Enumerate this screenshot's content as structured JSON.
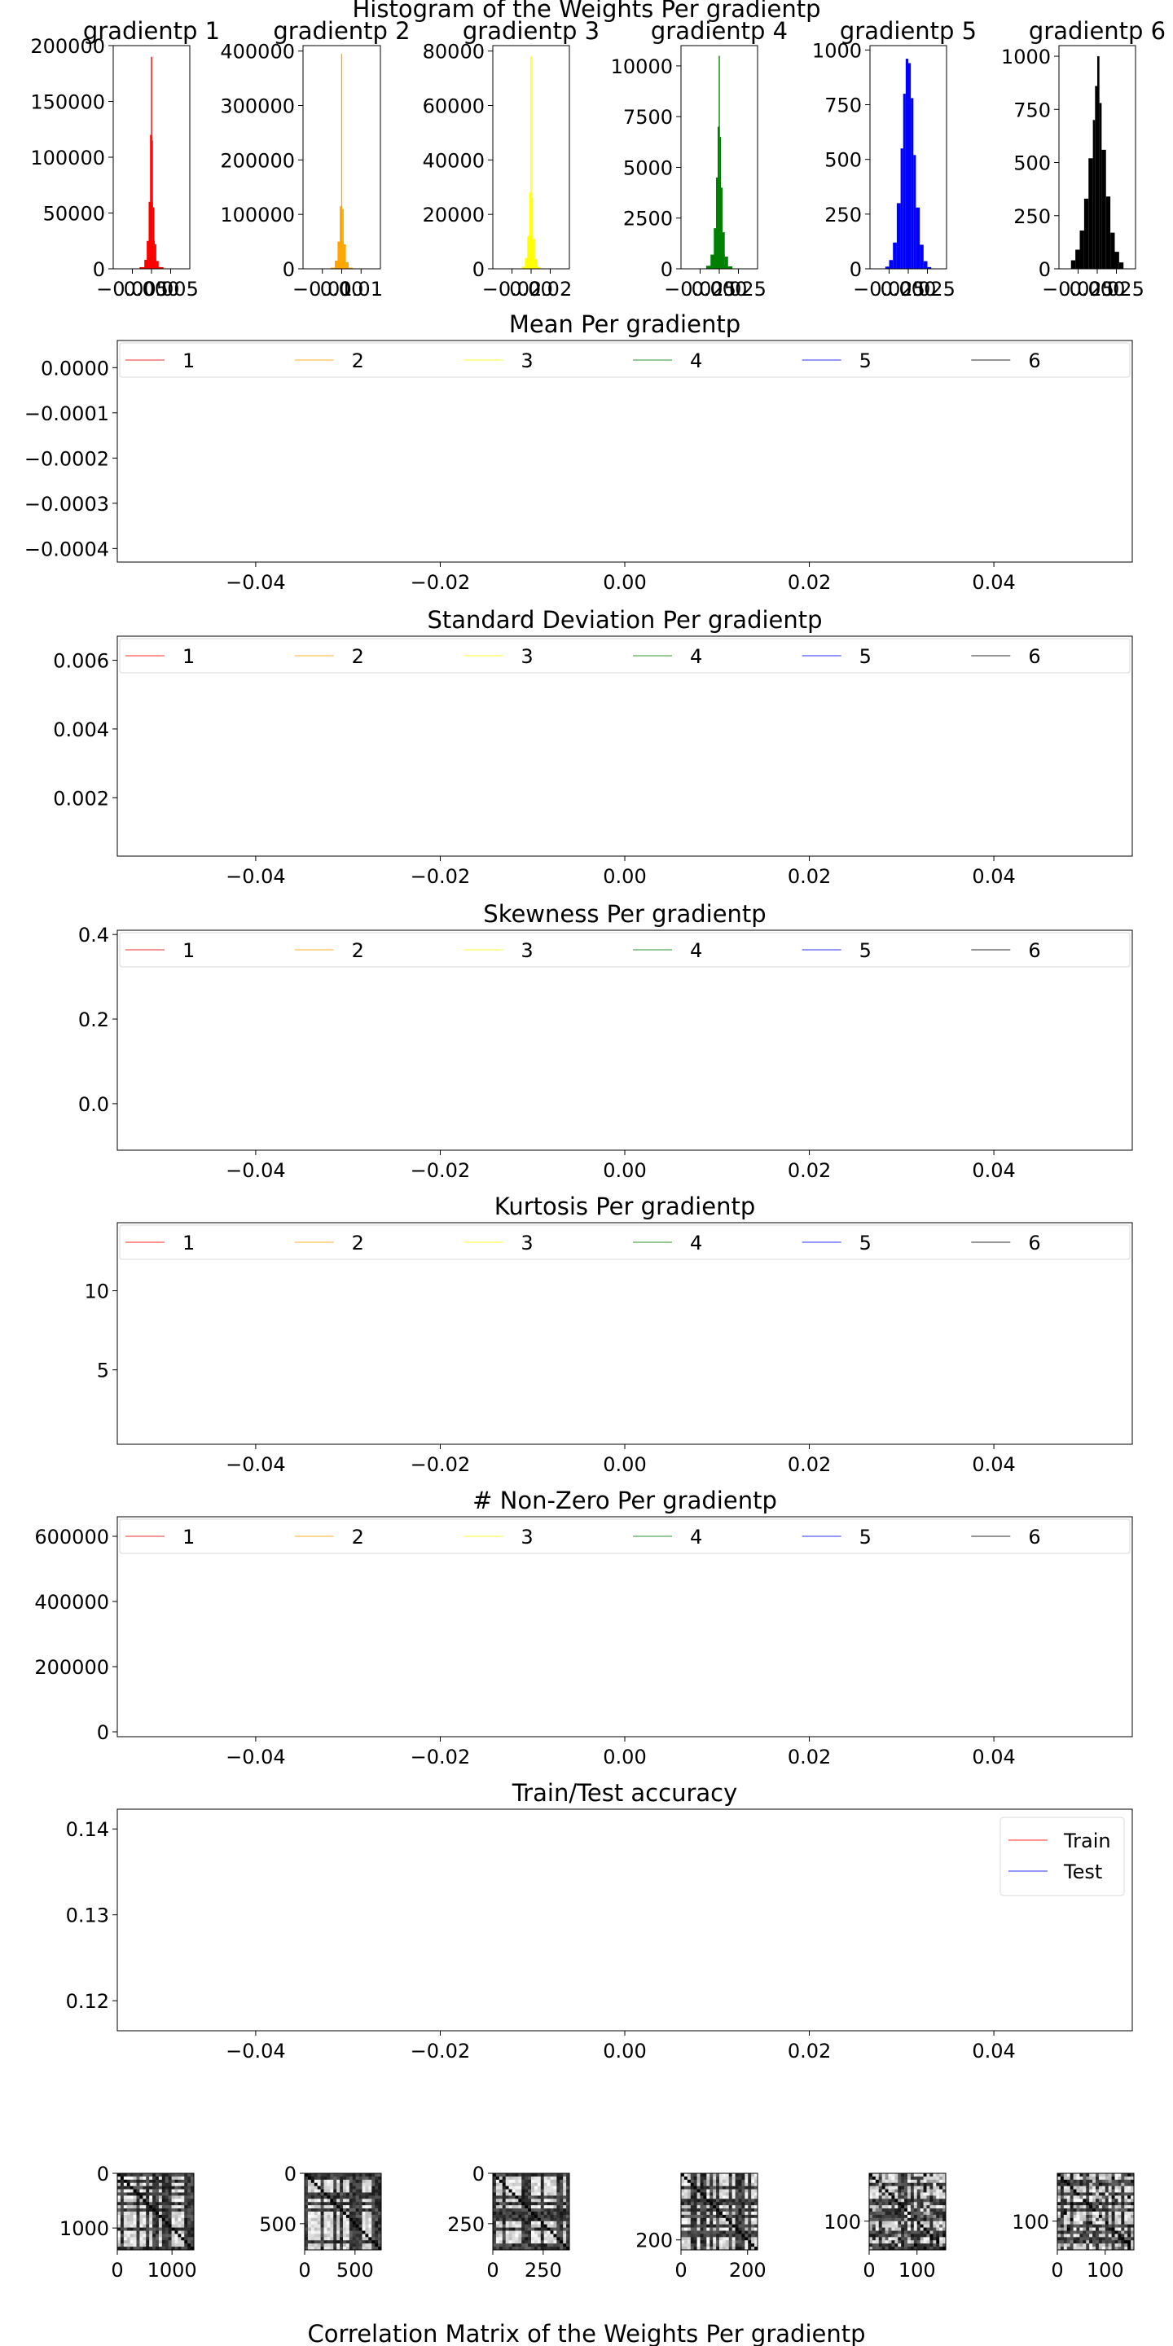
{
  "figure": {
    "histogram_title": "Histogram of the Weights Per gradientp",
    "correlation_title": "Correlation Matrix of the Weights Per gradientp"
  },
  "chart_data": [
    {
      "type": "bar",
      "group": "histograms",
      "title": "gradientp 1",
      "color": "#ff0000",
      "xticks": [
        "−0.005",
        "0.000",
        "0.005"
      ],
      "xlim": [
        -0.008,
        0.008
      ],
      "yticks": [
        0,
        50000,
        100000,
        150000,
        200000
      ],
      "ylim": [
        0,
        200000
      ],
      "bins": [
        [
          -0.0025,
          0.0015,
          1500
        ],
        [
          -0.0015,
          0.001,
          8000
        ],
        [
          -0.001,
          0.0007,
          25000
        ],
        [
          -0.0006,
          0.0003,
          60000
        ],
        [
          -0.0003,
          0.00012,
          120000
        ],
        [
          -0.00012,
          0.00012,
          190000
        ],
        [
          0.00012,
          0.0003,
          115000
        ],
        [
          0.0003,
          0.0006,
          55000
        ],
        [
          0.0006,
          0.001,
          22000
        ],
        [
          0.001,
          0.0015,
          7000
        ],
        [
          0.0015,
          0.0025,
          1500
        ]
      ]
    },
    {
      "type": "bar",
      "group": "histograms",
      "title": "gradientp 2",
      "color": "#ffa500",
      "xticks": [
        "−0.01",
        "0.00",
        "0.01"
      ],
      "xlim": [
        -0.014,
        0.014
      ],
      "yticks": [
        0,
        100000,
        200000,
        300000,
        400000
      ],
      "ylim": [
        0,
        410000
      ],
      "bins": [
        [
          -0.004,
          0.0025,
          2000
        ],
        [
          -0.0025,
          0.0015,
          15000
        ],
        [
          -0.0015,
          0.0007,
          50000
        ],
        [
          -0.0007,
          0.0002,
          115000
        ],
        [
          -0.0002,
          0.0002,
          395000
        ],
        [
          0.0002,
          0.0007,
          110000
        ],
        [
          0.0007,
          0.0015,
          45000
        ],
        [
          0.0015,
          0.0025,
          12000
        ],
        [
          0.0025,
          0.004,
          2000
        ]
      ]
    },
    {
      "type": "bar",
      "group": "histograms",
      "title": "gradientp 3",
      "color": "#ffff00",
      "xticks": [
        "−0.02",
        "0.00",
        "0.02"
      ],
      "xlim": [
        -0.025,
        0.025
      ],
      "yticks": [
        0,
        20000,
        40000,
        60000,
        80000
      ],
      "ylim": [
        0,
        82000
      ],
      "bins": [
        [
          -0.006,
          0.004,
          800
        ],
        [
          -0.004,
          0.0025,
          4000
        ],
        [
          -0.0025,
          0.0012,
          12000
        ],
        [
          -0.0012,
          0.0004,
          28000
        ],
        [
          -0.0004,
          0.0004,
          78000
        ],
        [
          0.0004,
          0.0012,
          26000
        ],
        [
          0.0012,
          0.0025,
          11000
        ],
        [
          0.0025,
          0.004,
          3500
        ],
        [
          0.004,
          0.006,
          700
        ]
      ]
    },
    {
      "type": "bar",
      "group": "histograms",
      "title": "gradientp 4",
      "color": "#008000",
      "xticks": [
        "−0.025",
        "0.000",
        "0.025"
      ],
      "xlim": [
        -0.035,
        0.035
      ],
      "yticks": [
        0,
        2500,
        5000,
        7500,
        10000
      ],
      "ylim": [
        0,
        11000
      ],
      "bins": [
        [
          -0.012,
          0.008,
          150
        ],
        [
          -0.008,
          0.005,
          700
        ],
        [
          -0.005,
          0.003,
          2000
        ],
        [
          -0.003,
          0.0015,
          4500
        ],
        [
          -0.0015,
          0.0005,
          7000
        ],
        [
          -0.0005,
          0.0005,
          10500
        ],
        [
          0.0005,
          0.0015,
          6500
        ],
        [
          0.0015,
          0.003,
          4000
        ],
        [
          0.003,
          0.005,
          1800
        ],
        [
          0.005,
          0.008,
          600
        ],
        [
          0.008,
          0.012,
          120
        ]
      ]
    },
    {
      "type": "bar",
      "group": "histograms",
      "title": "gradientp 5",
      "color": "#0000ff",
      "xticks": [
        "−0.025",
        "0.000",
        "0.025"
      ],
      "xlim": [
        -0.03,
        0.03
      ],
      "yticks": [
        0,
        250,
        500,
        750,
        1000
      ],
      "ylim": [
        0,
        1020
      ],
      "bins": [
        [
          -0.018,
          -0.015,
          10
        ],
        [
          -0.015,
          -0.012,
          40
        ],
        [
          -0.012,
          -0.009,
          120
        ],
        [
          -0.009,
          -0.006,
          300
        ],
        [
          -0.006,
          -0.004,
          550
        ],
        [
          -0.004,
          -0.002,
          800
        ],
        [
          -0.002,
          0,
          960
        ],
        [
          0,
          0.002,
          940
        ],
        [
          0.002,
          0.004,
          780
        ],
        [
          0.004,
          0.006,
          520
        ],
        [
          0.006,
          0.009,
          280
        ],
        [
          0.009,
          0.012,
          110
        ],
        [
          0.012,
          0.015,
          35
        ],
        [
          0.015,
          0.018,
          8
        ]
      ]
    },
    {
      "type": "bar",
      "group": "histograms",
      "title": "gradientp 6",
      "color": "#000000",
      "xticks": [
        "−0.025",
        "0.000",
        "0.025"
      ],
      "xlim": [
        -0.035,
        0.035
      ],
      "yticks": [
        0,
        250,
        500,
        750,
        1000
      ],
      "ylim": [
        0,
        1050
      ],
      "bins": [
        [
          -0.024,
          -0.02,
          40
        ],
        [
          -0.02,
          -0.016,
          90
        ],
        [
          -0.016,
          -0.012,
          180
        ],
        [
          -0.012,
          -0.008,
          330
        ],
        [
          -0.008,
          -0.004,
          520
        ],
        [
          -0.004,
          -0.002,
          700
        ],
        [
          -0.002,
          0,
          860
        ],
        [
          0,
          0.002,
          1000
        ],
        [
          0.002,
          0.004,
          780
        ],
        [
          0.004,
          0.008,
          560
        ],
        [
          0.008,
          0.012,
          340
        ],
        [
          0.012,
          0.016,
          170
        ],
        [
          0.016,
          0.02,
          80
        ],
        [
          0.02,
          0.024,
          30
        ]
      ]
    },
    {
      "type": "line",
      "group": "stat",
      "title": "Mean Per gradientp",
      "xlim": [
        -0.055,
        0.055
      ],
      "xticks": [
        -0.04,
        -0.02,
        0.0,
        0.02,
        0.04
      ],
      "xticklabels": [
        "−0.04",
        "−0.02",
        "0.00",
        "0.02",
        "0.04"
      ],
      "ylim": [
        -0.00043,
        6e-05
      ],
      "yticks": [
        0.0,
        -0.0001,
        -0.0002,
        -0.0003,
        -0.0004
      ],
      "yticklabels": [
        "0.0000",
        "−0.0001",
        "−0.0002",
        "−0.0003",
        "−0.0004"
      ],
      "legend": "top",
      "series": [
        {
          "name": "1",
          "color": "#ff0000",
          "values": []
        },
        {
          "name": "2",
          "color": "#ffa500",
          "values": []
        },
        {
          "name": "3",
          "color": "#ffff00",
          "values": []
        },
        {
          "name": "4",
          "color": "#008000",
          "values": []
        },
        {
          "name": "5",
          "color": "#0000ff",
          "values": []
        },
        {
          "name": "6",
          "color": "#000000",
          "values": []
        }
      ]
    },
    {
      "type": "line",
      "group": "stat",
      "title": "Standard Deviation Per gradientp",
      "xlim": [
        -0.055,
        0.055
      ],
      "xticks": [
        -0.04,
        -0.02,
        0.0,
        0.02,
        0.04
      ],
      "xticklabels": [
        "−0.04",
        "−0.02",
        "0.00",
        "0.02",
        "0.04"
      ],
      "ylim": [
        0.0003,
        0.0067
      ],
      "yticks": [
        0.006,
        0.004,
        0.002
      ],
      "yticklabels": [
        "0.006",
        "0.004",
        "0.002"
      ],
      "legend": "top",
      "series": [
        {
          "name": "1",
          "color": "#ff0000",
          "values": []
        },
        {
          "name": "2",
          "color": "#ffa500",
          "values": []
        },
        {
          "name": "3",
          "color": "#ffff00",
          "values": []
        },
        {
          "name": "4",
          "color": "#008000",
          "values": []
        },
        {
          "name": "5",
          "color": "#0000ff",
          "values": []
        },
        {
          "name": "6",
          "color": "#000000",
          "values": []
        }
      ]
    },
    {
      "type": "line",
      "group": "stat",
      "title": "Skewness Per gradientp",
      "xlim": [
        -0.055,
        0.055
      ],
      "xticks": [
        -0.04,
        -0.02,
        0.0,
        0.02,
        0.04
      ],
      "xticklabels": [
        "−0.04",
        "−0.02",
        "0.00",
        "0.02",
        "0.04"
      ],
      "ylim": [
        -0.11,
        0.41
      ],
      "yticks": [
        0.4,
        0.2,
        0.0
      ],
      "yticklabels": [
        "0.4",
        "0.2",
        "0.0"
      ],
      "legend": "top",
      "series": [
        {
          "name": "1",
          "color": "#ff0000",
          "values": []
        },
        {
          "name": "2",
          "color": "#ffa500",
          "values": []
        },
        {
          "name": "3",
          "color": "#ffff00",
          "values": []
        },
        {
          "name": "4",
          "color": "#008000",
          "values": []
        },
        {
          "name": "5",
          "color": "#0000ff",
          "values": []
        },
        {
          "name": "6",
          "color": "#000000",
          "values": []
        }
      ]
    },
    {
      "type": "line",
      "group": "stat",
      "title": "Kurtosis Per gradientp",
      "xlim": [
        -0.055,
        0.055
      ],
      "xticks": [
        -0.04,
        -0.02,
        0.0,
        0.02,
        0.04
      ],
      "xticklabels": [
        "−0.04",
        "−0.02",
        "0.00",
        "0.02",
        "0.04"
      ],
      "ylim": [
        0.3,
        14.3
      ],
      "yticks": [
        10,
        5
      ],
      "yticklabels": [
        "10",
        "5"
      ],
      "legend": "top",
      "series": [
        {
          "name": "1",
          "color": "#ff0000",
          "values": []
        },
        {
          "name": "2",
          "color": "#ffa500",
          "values": []
        },
        {
          "name": "3",
          "color": "#ffff00",
          "values": []
        },
        {
          "name": "4",
          "color": "#008000",
          "values": []
        },
        {
          "name": "5",
          "color": "#0000ff",
          "values": []
        },
        {
          "name": "6",
          "color": "#000000",
          "values": []
        }
      ]
    },
    {
      "type": "line",
      "group": "stat",
      "title": "# Non-Zero Per gradientp",
      "xlim": [
        -0.055,
        0.055
      ],
      "xticks": [
        -0.04,
        -0.02,
        0.0,
        0.02,
        0.04
      ],
      "xticklabels": [
        "−0.04",
        "−0.02",
        "0.00",
        "0.02",
        "0.04"
      ],
      "ylim": [
        -15000,
        660000
      ],
      "yticks": [
        600000,
        400000,
        200000,
        0
      ],
      "yticklabels": [
        "600000",
        "400000",
        "200000",
        "0"
      ],
      "legend": "top",
      "series": [
        {
          "name": "1",
          "color": "#ff0000",
          "values": []
        },
        {
          "name": "2",
          "color": "#ffa500",
          "values": []
        },
        {
          "name": "3",
          "color": "#ffff00",
          "values": []
        },
        {
          "name": "4",
          "color": "#008000",
          "values": []
        },
        {
          "name": "5",
          "color": "#0000ff",
          "values": []
        },
        {
          "name": "6",
          "color": "#000000",
          "values": []
        }
      ]
    },
    {
      "type": "line",
      "group": "stat",
      "title": "Train/Test accuracy",
      "xlim": [
        -0.055,
        0.055
      ],
      "xticks": [
        -0.04,
        -0.02,
        0.0,
        0.02,
        0.04
      ],
      "xticklabels": [
        "−0.04",
        "−0.02",
        "0.00",
        "0.02",
        "0.04"
      ],
      "ylim": [
        0.1165,
        0.1423
      ],
      "yticks": [
        0.14,
        0.13,
        0.12
      ],
      "yticklabels": [
        "0.14",
        "0.13",
        "0.12"
      ],
      "legend": "upper right",
      "series": [
        {
          "name": "Train",
          "color": "#ff0000",
          "values": []
        },
        {
          "name": "Test",
          "color": "#0000ff",
          "values": []
        }
      ]
    },
    {
      "type": "heatmap",
      "group": "correlation",
      "xticklabels": [
        "0",
        "1000"
      ],
      "xtickvalues": [
        0,
        1000
      ],
      "yticklabels": [
        "0",
        "1000"
      ],
      "ytickvalues": [
        0,
        1000
      ],
      "extent": 1400
    },
    {
      "type": "heatmap",
      "group": "correlation",
      "xticklabels": [
        "0",
        "500"
      ],
      "xtickvalues": [
        0,
        500
      ],
      "yticklabels": [
        "0",
        "500"
      ],
      "ytickvalues": [
        0,
        500
      ],
      "extent": 760
    },
    {
      "type": "heatmap",
      "group": "correlation",
      "xticklabels": [
        "0",
        "250"
      ],
      "xtickvalues": [
        0,
        250
      ],
      "yticklabels": [
        "0",
        "250"
      ],
      "ytickvalues": [
        0,
        250
      ],
      "extent": 380
    },
    {
      "type": "heatmap",
      "group": "correlation",
      "xticklabels": [
        "0",
        "200"
      ],
      "xtickvalues": [
        0,
        200
      ],
      "yticklabels": [
        "200"
      ],
      "ytickvalues": [
        200
      ],
      "extent": 230
    },
    {
      "type": "heatmap",
      "group": "correlation",
      "xticklabels": [
        "0",
        "100"
      ],
      "xtickvalues": [
        0,
        100
      ],
      "yticklabels": [
        "100"
      ],
      "ytickvalues": [
        100
      ],
      "extent": 160
    },
    {
      "type": "heatmap",
      "group": "correlation",
      "xticklabels": [
        "0",
        "100"
      ],
      "xtickvalues": [
        0,
        100
      ],
      "yticklabels": [
        "100"
      ],
      "ytickvalues": [
        100
      ],
      "extent": 160
    }
  ]
}
